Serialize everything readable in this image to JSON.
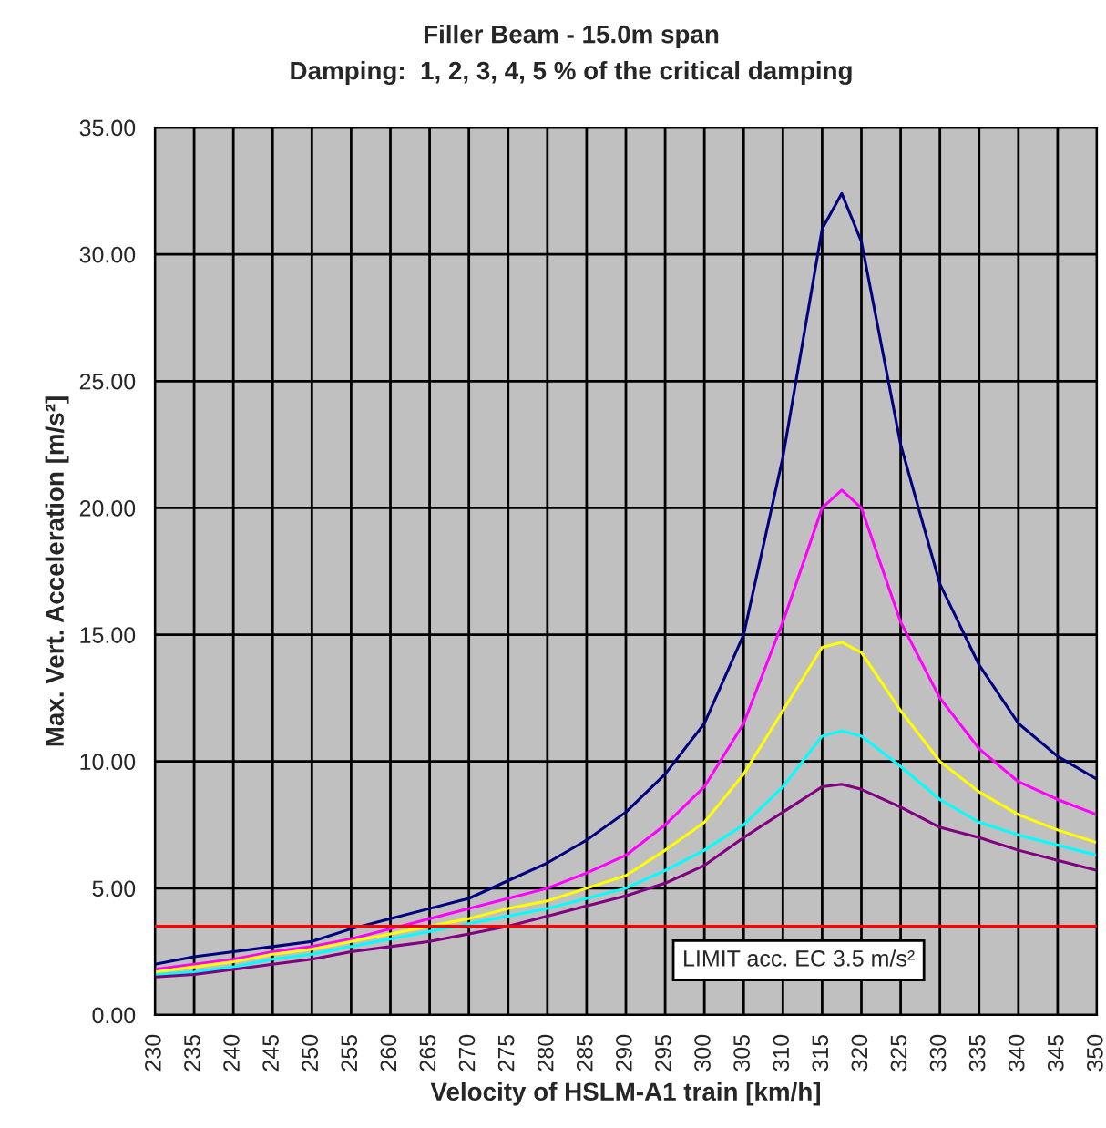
{
  "chart_data": {
    "type": "line",
    "title": "Filler Beam - 15.0m span",
    "subtitle": "Damping:  1, 2, 3, 4, 5 % of the critical damping",
    "xlabel": "Velocity of HSLM-A1 train [km/h]",
    "ylabel": "Max. Vert. Acceleration [m/s²]",
    "x": [
      230,
      235,
      240,
      245,
      250,
      255,
      260,
      265,
      270,
      275,
      280,
      285,
      290,
      295,
      300,
      305,
      310,
      315,
      317.5,
      320,
      325,
      330,
      335,
      340,
      345,
      350
    ],
    "series": [
      {
        "color": "#000080",
        "values": [
          2.0,
          2.3,
          2.5,
          2.7,
          2.9,
          3.4,
          3.8,
          4.2,
          4.6,
          5.3,
          6.0,
          6.9,
          8.0,
          9.5,
          11.5,
          15.0,
          22.0,
          31.0,
          32.4,
          30.5,
          22.5,
          17.0,
          13.8,
          11.5,
          10.2,
          9.3
        ]
      },
      {
        "color": "#ff00ff",
        "values": [
          1.8,
          2.0,
          2.2,
          2.5,
          2.7,
          3.0,
          3.4,
          3.8,
          4.2,
          4.6,
          5.0,
          5.6,
          6.3,
          7.5,
          9.0,
          11.5,
          15.5,
          20.0,
          20.7,
          20.0,
          15.5,
          12.5,
          10.5,
          9.2,
          8.5,
          7.9
        ]
      },
      {
        "color": "#ffff00",
        "values": [
          1.7,
          1.9,
          2.1,
          2.4,
          2.6,
          2.9,
          3.2,
          3.5,
          3.8,
          4.2,
          4.5,
          5.0,
          5.5,
          6.5,
          7.6,
          9.5,
          12.0,
          14.5,
          14.7,
          14.3,
          12.0,
          10.0,
          8.8,
          7.9,
          7.3,
          6.8
        ]
      },
      {
        "color": "#00ffff",
        "values": [
          1.6,
          1.7,
          1.9,
          2.2,
          2.4,
          2.7,
          3.0,
          3.3,
          3.6,
          3.9,
          4.2,
          4.6,
          5.0,
          5.7,
          6.5,
          7.5,
          9.0,
          11.0,
          11.2,
          11.0,
          9.8,
          8.5,
          7.6,
          7.1,
          6.7,
          6.3
        ]
      },
      {
        "color": "#800080",
        "values": [
          1.5,
          1.6,
          1.8,
          2.0,
          2.2,
          2.5,
          2.7,
          2.9,
          3.2,
          3.5,
          3.9,
          4.3,
          4.7,
          5.2,
          5.9,
          7.0,
          8.0,
          9.0,
          9.1,
          8.9,
          8.2,
          7.4,
          7.0,
          6.5,
          6.1,
          5.7
        ]
      }
    ],
    "ref_lines": [
      {
        "axis": "y",
        "value": 3.5,
        "label": "LIMIT acc. EC 3.5 m/s²",
        "color": "#ff0000"
      }
    ],
    "xlim": [
      230,
      350
    ],
    "xticks": [
      230,
      235,
      240,
      245,
      250,
      255,
      260,
      265,
      270,
      275,
      280,
      285,
      290,
      295,
      300,
      305,
      310,
      315,
      320,
      325,
      330,
      335,
      340,
      345,
      350
    ],
    "ylim": [
      0,
      35
    ],
    "yticks": [
      {
        "value": 0,
        "label": "0.00"
      },
      {
        "value": 5,
        "label": "5.00"
      },
      {
        "value": 10,
        "label": "10.00"
      },
      {
        "value": 15,
        "label": "15.00"
      },
      {
        "value": 20,
        "label": "20.00"
      },
      {
        "value": 25,
        "label": "25.00"
      },
      {
        "value": 30,
        "label": "30.00"
      },
      {
        "value": 35,
        "label": "35.00"
      }
    ],
    "grid": true,
    "marker": "none",
    "line_style": "solid"
  }
}
